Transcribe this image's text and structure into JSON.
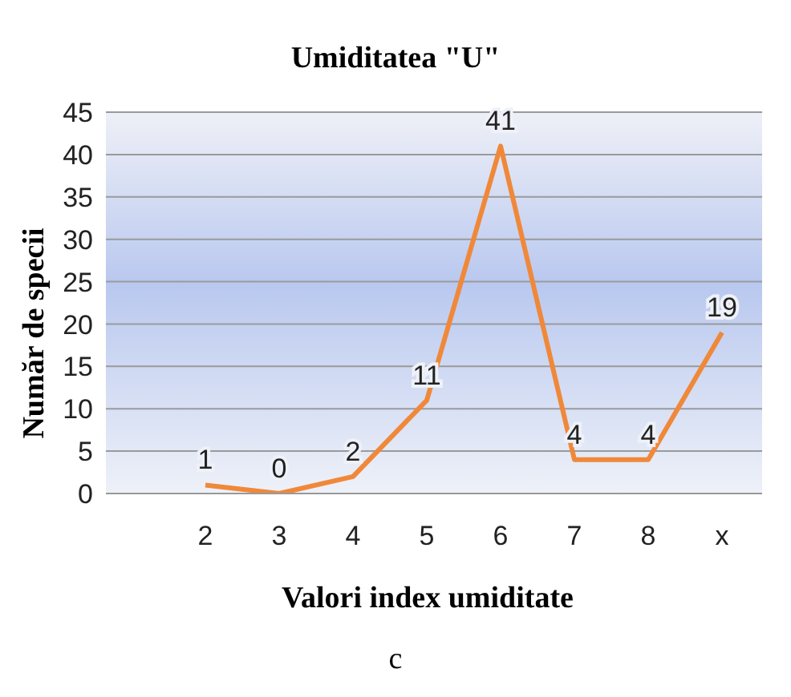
{
  "chart_data": {
    "type": "line",
    "title": "Umiditatea  \"U\"",
    "xlabel": "Valori index umiditate",
    "ylabel": "Număr de specii",
    "categories": [
      "2",
      "3",
      "4",
      "5",
      "6",
      "7",
      "8",
      "x"
    ],
    "series": [
      {
        "color": "#f0883a",
        "values": [
          1,
          0,
          2,
          11,
          41,
          4,
          4,
          19
        ]
      }
    ],
    "ylim": [
      0,
      45
    ],
    "yticks": [
      0,
      5,
      10,
      15,
      20,
      25,
      30,
      35,
      40,
      45
    ],
    "grid": "y",
    "data_labels": true,
    "marker": "none",
    "annotations": [
      "c"
    ]
  }
}
